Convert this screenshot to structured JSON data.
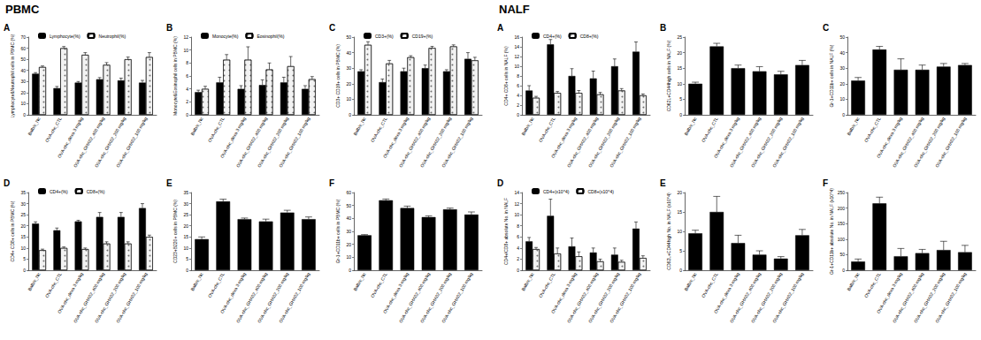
{
  "headings": [
    "PBMC",
    "NALF"
  ],
  "chart_data": [
    {
      "type": "bar",
      "title": "A",
      "y_label": "Lymphocyte&Neutrophil cells in PBMC (%)",
      "categories": [
        "Balb/c_Nc",
        "OVA-chc_CTL",
        "OVA-chc_dexa 3 mg/kg",
        "OVA-chc_GHX02_400 mg/kg",
        "OVA-chc_GHX02_200 mg/kg",
        "OVA-chc_GHX02_100 mg/kg"
      ],
      "series": [
        {
          "name": "Lymphocyte(%)",
          "color": "#000000",
          "values": [
            37,
            24,
            29,
            32,
            31,
            29
          ],
          "errors": [
            1,
            1.5,
            1,
            1.5,
            2,
            2
          ]
        },
        {
          "name": "Neutrophil(%)",
          "color": "#f2f2f2",
          "values": [
            43,
            60,
            54,
            45,
            50,
            52
          ],
          "errors": [
            1,
            1.5,
            2,
            2,
            2,
            4
          ]
        }
      ],
      "ylim": [
        0,
        70
      ],
      "yticks": [
        0,
        10,
        20,
        30,
        40,
        50,
        60,
        70
      ],
      "legend": "top"
    },
    {
      "type": "bar",
      "title": "B",
      "y_label": "Monocyte&Eosinophil cells in PBMC (%)",
      "categories": [
        "Balb/c_Nc",
        "OVA-chc_CTL",
        "OVA-chc_dexa 3 mg/kg",
        "OVA-chc_GHX02_400 mg/kg",
        "OVA-chc_GHX02_200 mg/kg",
        "OVA-chc_GHX02_100 mg/kg"
      ],
      "series": [
        {
          "name": "Monocyte(%)",
          "color": "#000000",
          "values": [
            3.5,
            5,
            4,
            4.6,
            5,
            4
          ],
          "errors": [
            0.3,
            0.8,
            0.5,
            0.8,
            0.8,
            0.5
          ]
        },
        {
          "name": "Eosinophil(%)",
          "color": "#f2f2f2",
          "values": [
            4,
            8.5,
            8.5,
            7,
            7.5,
            5.5
          ],
          "errors": [
            0.4,
            0.8,
            2,
            1,
            1.5,
            0.4
          ]
        }
      ],
      "ylim": [
        0,
        12
      ],
      "yticks": [
        0,
        2,
        4,
        6,
        8,
        10,
        12
      ],
      "legend": "top"
    },
    {
      "type": "bar",
      "title": "C",
      "y_label": "CD3+ CD19+ cells in PBMC (%)",
      "categories": [
        "Balb/c_Nc",
        "OVA-chc_CTL",
        "OVA-chc_dexa 3 mg/kg",
        "OVA-chc_GHX02_400 mg/kg",
        "OVA-chc_GHX02_200 mg/kg",
        "OVA-chc_GHX02_100 mg/kg"
      ],
      "series": [
        {
          "name": "CD3+(%)",
          "color": "#000000",
          "values": [
            28,
            21,
            28,
            30,
            28,
            36
          ],
          "errors": [
            1,
            2,
            2,
            2,
            1,
            4
          ]
        },
        {
          "name": "CD19+(%)",
          "color": "#f2f2f2",
          "values": [
            45,
            33,
            37,
            43,
            44,
            35
          ],
          "errors": [
            2,
            2,
            1,
            1,
            1,
            2
          ]
        }
      ],
      "ylim": [
        0,
        50
      ],
      "yticks": [
        0,
        10,
        20,
        30,
        40,
        50
      ],
      "legend": "top"
    },
    {
      "type": "bar",
      "title": "D",
      "y_label": "CD4+ CD8+ cells in PBMC (%)",
      "categories": [
        "Balb/c_Nc",
        "OVA-chc_CTL",
        "OVA-chc_dexa 3 mg/kg",
        "OVA-chc_GHX02_400 mg/kg",
        "OVA-chc_GHX02_200 mg/kg",
        "OVA-chc_GHX02_100 mg/kg"
      ],
      "series": [
        {
          "name": "CD4+(%)",
          "color": "#000000",
          "values": [
            21,
            18,
            22,
            24,
            24,
            28
          ],
          "errors": [
            0.8,
            1,
            0.5,
            2,
            2,
            2
          ]
        },
        {
          "name": "CD8+(%)",
          "color": "#f2f2f2",
          "values": [
            9,
            10,
            9.5,
            12,
            12,
            15
          ],
          "errors": [
            0.5,
            0.5,
            0.5,
            0.8,
            0.8,
            0.8
          ]
        }
      ],
      "ylim": [
        0,
        35
      ],
      "yticks": [
        0,
        5,
        10,
        15,
        20,
        25,
        30,
        35
      ],
      "legend": "top"
    },
    {
      "type": "bar",
      "title": "E",
      "y_label": "CD23+B220+ cells in PBMC (%)",
      "categories": [
        "Balb/c_Nc",
        "OVA-chc_CTL",
        "OVA-chc_dexa 3 mg/kg",
        "OVA-chc_GHX02_400 mg/kg",
        "OVA-chc_GHX02_200 mg/kg",
        "OVA-chc_GHX02_100 mg/kg"
      ],
      "series": [
        {
          "color": "#000000",
          "values": [
            14,
            31,
            23,
            22,
            26,
            23
          ],
          "errors": [
            1,
            1,
            0.5,
            1,
            1,
            1
          ]
        }
      ],
      "ylim": [
        0,
        35
      ],
      "yticks": [
        0,
        5,
        10,
        15,
        20,
        25,
        30,
        35
      ]
    },
    {
      "type": "bar",
      "title": "F",
      "y_label": "Gr-1+CD11b+ cells in PBMC (%)",
      "categories": [
        "Balb/c_Nc",
        "OVA-chc_CTL",
        "OVA-chc_dexa 3 mg/kg",
        "OVA-chc_GHX02_400 mg/kg",
        "OVA-chc_GHX02_200 mg/kg",
        "OVA-chc_GHX02_100 mg/kg"
      ],
      "series": [
        {
          "color": "#000000",
          "values": [
            27,
            54,
            48,
            41,
            47,
            43
          ],
          "errors": [
            0.5,
            1,
            1.5,
            1,
            1,
            2
          ]
        }
      ],
      "ylim": [
        0,
        60
      ],
      "yticks": [
        0,
        10,
        20,
        30,
        40,
        50,
        60
      ]
    },
    {
      "type": "bar",
      "title": "A",
      "y_label": "CD4+ CD8+ cells in NALF (%)",
      "categories": [
        "Balb/c_Nc",
        "OVA-chc_CTL",
        "OVA-chc_dexa 3 mg/kg",
        "OVA-chc_GHX02_400 mg/kg",
        "OVA-chc_GHX02_200 mg/kg",
        "OVA-chc_GHX02_100 mg/kg"
      ],
      "series": [
        {
          "name": "CD4+(%)",
          "color": "#000000",
          "values": [
            5,
            14.5,
            8,
            7.5,
            10,
            13
          ],
          "errors": [
            1,
            1,
            1.5,
            1.5,
            1.5,
            2
          ]
        },
        {
          "name": "CD8+(%)",
          "color": "#f2f2f2",
          "values": [
            3.5,
            4.5,
            4.5,
            4.2,
            5,
            4
          ],
          "errors": [
            0.3,
            0.3,
            0.5,
            0.4,
            0.4,
            0.3
          ]
        }
      ],
      "ylim": [
        0,
        16
      ],
      "yticks": [
        0,
        2,
        4,
        6,
        8,
        10,
        12,
        14,
        16
      ],
      "legend": "top"
    },
    {
      "type": "bar",
      "title": "B",
      "y_label": "CD62L+CD44high cells in NALF (%)",
      "categories": [
        "Balb/c_Nc",
        "OVA-chc_CTL",
        "OVA-chc_dexa 3 mg/kg",
        "OVA-chc_GHX02_400 mg/kg",
        "OVA-chc_GHX02_200 mg/kg",
        "OVA-chc_GHX02_100 mg/kg"
      ],
      "series": [
        {
          "color": "#000000",
          "values": [
            10,
            22,
            15,
            14,
            13,
            16
          ],
          "errors": [
            0.5,
            1,
            1,
            1.5,
            1,
            1.5
          ]
        }
      ],
      "ylim": [
        0,
        25
      ],
      "yticks": [
        0,
        5,
        10,
        15,
        20,
        25
      ]
    },
    {
      "type": "bar",
      "title": "C",
      "y_label": "Gr-1+CD11b+ cells in NALF (%)",
      "categories": [
        "Balb/c_Nc",
        "OVA-chc_CTL",
        "OVA-chc_dexa 3 mg/kg",
        "OVA-chc_GHX02_400 mg/kg",
        "OVA-chc_GHX02_200 mg/kg",
        "OVA-chc_GHX02_100 mg/kg"
      ],
      "series": [
        {
          "color": "#000000",
          "values": [
            22,
            42,
            29,
            29,
            31,
            32
          ],
          "errors": [
            2,
            2,
            7,
            3,
            2,
            1
          ]
        }
      ],
      "ylim": [
        0,
        50
      ],
      "yticks": [
        0,
        10,
        20,
        30,
        40,
        50
      ]
    },
    {
      "type": "bar",
      "title": "D",
      "y_label": "CD4+/CD8+ absolute No. in NALF",
      "categories": [
        "Balb/c_Nc",
        "OVA-chc_CTL",
        "OVA-chc_dexa 3 mg/kg",
        "OVA-chc_GHX02_400 mg/kg",
        "OVA-chc_GHX02_200 mg/kg",
        "OVA-chc_GHX02_100 mg/kg"
      ],
      "series": [
        {
          "name": "CD4+(x10^4)",
          "color": "#000000",
          "values": [
            5.2,
            9.8,
            4.3,
            3.2,
            2.8,
            7.5
          ],
          "errors": [
            0.7,
            3,
            1.5,
            0.8,
            1.2,
            1.2
          ]
        },
        {
          "name": "CD8+(x10^4)",
          "color": "#f2f2f2",
          "values": [
            3.8,
            3.0,
            2.5,
            1.6,
            1.5,
            2.2
          ],
          "errors": [
            0.3,
            1,
            0.8,
            0.4,
            0.3,
            0.4
          ]
        }
      ],
      "ylim": [
        0,
        14
      ],
      "yticks": [
        0,
        2,
        4,
        6,
        8,
        10,
        12,
        14
      ],
      "legend": "top"
    },
    {
      "type": "bar",
      "title": "E",
      "y_label": "CD62L+CD44high No. in NALF (x10^4)",
      "categories": [
        "Balb/c_Nc",
        "OVA-chc_CTL",
        "OVA-chc_dexa 3 mg/kg",
        "OVA-chc_GHX02_400 mg/kg",
        "OVA-chc_GHX02_200 mg/kg",
        "OVA-chc_GHX02_100 mg/kg"
      ],
      "series": [
        {
          "color": "#000000",
          "values": [
            9.5,
            15,
            7,
            4,
            3,
            9
          ],
          "errors": [
            0.8,
            4,
            2,
            1,
            0.5,
            1.5
          ]
        }
      ],
      "ylim": [
        0,
        20
      ],
      "yticks": [
        0,
        5,
        10,
        15,
        20
      ]
    },
    {
      "type": "bar",
      "title": "F",
      "y_label": "Gr-1+CD11b+ absolute No. in NALF (x10^4)",
      "categories": [
        "Balb/c_Nc",
        "OVA-chc_CTL",
        "OVA-chc_dexa 3 mg/kg",
        "OVA-chc_GHX02_400 mg/kg",
        "OVA-chc_GHX02_200 mg/kg",
        "OVA-chc_GHX02_100 mg/kg"
      ],
      "series": [
        {
          "color": "#000000",
          "values": [
            28,
            215,
            45,
            55,
            65,
            58
          ],
          "errors": [
            8,
            20,
            25,
            12,
            28,
            22
          ]
        }
      ],
      "ylim": [
        0,
        250
      ],
      "yticks": [
        0,
        50,
        100,
        150,
        200,
        250
      ]
    }
  ]
}
